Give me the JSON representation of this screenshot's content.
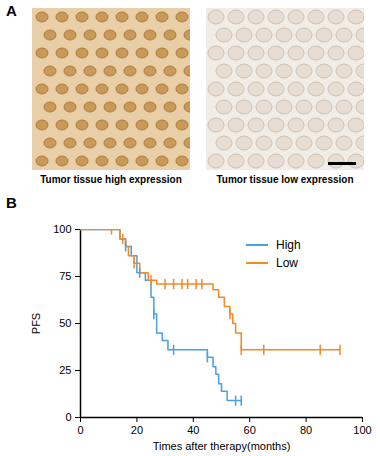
{
  "panel_labels": [
    "A",
    "B"
  ],
  "images": [
    {
      "caption": "Tumor tissue high expression"
    },
    {
      "caption": "Tumor tissue low expression"
    }
  ],
  "chart_data": {
    "type": "line",
    "x_label": "Times after therapy(months)",
    "y_label": "PFS",
    "xlim": [
      0,
      100
    ],
    "xticks": [
      0,
      20,
      40,
      60,
      80,
      100
    ],
    "ylim": [
      0,
      100
    ],
    "yticks": [
      0,
      25,
      50,
      75,
      100
    ],
    "legend": "top-right",
    "line_style": "step",
    "marker": "tick",
    "series": [
      {
        "name": "High",
        "color": "#4a9fe0",
        "x": [
          0,
          10,
          14,
          16,
          18,
          20,
          23,
          25,
          26,
          27,
          29,
          31,
          45,
          47,
          48,
          49,
          50,
          52,
          57
        ],
        "values": [
          100,
          100,
          95,
          91,
          86,
          77,
          73,
          64,
          55,
          45,
          41,
          36,
          32,
          27,
          23,
          18,
          14,
          9,
          9
        ],
        "censored_x": [
          16,
          21,
          26,
          33,
          45,
          55,
          57
        ],
        "censored_values": [
          91,
          77,
          55,
          36,
          32,
          9,
          9
        ]
      },
      {
        "name": "Low",
        "color": "#f08a24",
        "x": [
          0,
          10,
          14,
          16,
          17,
          19,
          21,
          24,
          27,
          47,
          49,
          51,
          53,
          54,
          55,
          57,
          92
        ],
        "values": [
          100,
          100,
          95,
          91,
          86,
          82,
          77,
          73,
          71,
          68,
          64,
          59,
          55,
          50,
          45,
          36,
          36
        ],
        "censored_x": [
          11,
          15,
          19,
          25,
          30,
          33,
          36,
          38,
          41,
          43,
          53,
          57,
          65,
          85,
          92
        ],
        "censored_values": [
          100,
          95,
          82,
          73,
          71,
          71,
          71,
          71,
          71,
          71,
          55,
          36,
          36,
          36,
          36
        ]
      }
    ]
  }
}
